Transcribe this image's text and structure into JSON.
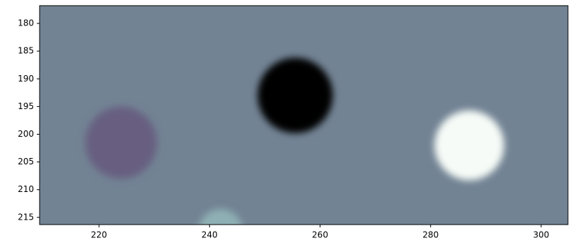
{
  "chart_data": {
    "type": "image",
    "background": "#728394",
    "xlim": [
      209.25,
      304.86
    ],
    "ylim": [
      216.3,
      176.8
    ],
    "xticks": [
      220,
      240,
      260,
      280,
      300
    ],
    "yticks": [
      180,
      185,
      190,
      195,
      200,
      205,
      210,
      215
    ],
    "spots": [
      {
        "x": 224,
        "y": 201.5,
        "r": 6.5,
        "color": "#675f80"
      },
      {
        "x": 255.5,
        "y": 193,
        "r": 6.8,
        "color": "#000000"
      },
      {
        "x": 287,
        "y": 202,
        "r": 6.3,
        "color": "#f6fbf7"
      },
      {
        "x": 242,
        "y": 217.5,
        "r": 4,
        "color": "#8fb0b4"
      }
    ]
  }
}
